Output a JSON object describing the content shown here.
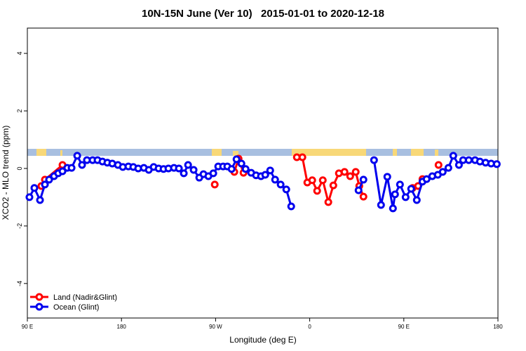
{
  "chart_data": {
    "type": "line",
    "title": "10N-15N June (Ver 10)   2015-01-01 to 2020-12-18",
    "x_label": "Longitude (deg E)",
    "y_label": "XCO2 - MLO trend (ppm)",
    "xlim": [
      90,
      540
    ],
    "ylim": [
      -5.2,
      4.88
    ],
    "xticks": [
      {
        "value": 90,
        "label": "90 E"
      },
      180,
      {
        "value": 270,
        "label": "90 W"
      },
      {
        "value": 360,
        "label": "0"
      },
      {
        "value": 450,
        "label": "90 E"
      },
      {
        "value": 540,
        "label": "180"
      }
    ],
    "yticks": [
      -4,
      -2,
      0,
      2,
      4
    ],
    "legend": "bottomleft",
    "series": [
      {
        "name": "Land (Nadir&Glint)",
        "color": "#ff0000",
        "x": [
          103.4,
          106.8,
          123.6,
          null,
          269.2,
          null,
          287.9,
          292.0,
          296.7,
          null,
          347.7,
          353.0,
          357.7,
          362.4,
          367.1,
          372.5,
          377.8,
          382.6,
          387.9,
          393.3,
          398.7,
          404.0,
          407.4,
          411.4,
          null,
          458.4,
          463.7,
          467.8,
          null,
          483.2
        ],
        "values": [
          -0.61,
          -0.39,
          0.12,
          null,
          -0.56,
          null,
          -0.12,
          0.34,
          -0.15,
          null,
          0.39,
          0.39,
          -0.49,
          -0.41,
          -0.78,
          -0.41,
          -1.17,
          -0.59,
          -0.17,
          -0.12,
          -0.27,
          -0.12,
          -0.61,
          -0.98,
          null,
          -0.68,
          -0.61,
          -0.37,
          null,
          0.12
        ]
      },
      {
        "name": "Ocean (Glint)",
        "color": "#0000ee",
        "x": [
          92.0,
          96.7,
          102.1,
          106.8,
          110.8,
          115.5,
          119.5,
          123.6,
          128.2,
          132.3,
          137.7,
          142.3,
          147.0,
          152.4,
          157.1,
          161.8,
          166.5,
          171.2,
          176.6,
          181.3,
          186.6,
          191.3,
          196.0,
          201.4,
          206.1,
          210.8,
          215.5,
          220.2,
          224.9,
          230.2,
          234.9,
          239.6,
          243.7,
          249.0,
          254.4,
          258.4,
          263.1,
          267.8,
          272.5,
          277.2,
          281.2,
          285.3,
          290.0,
          294.7,
          298.7,
          304.0,
          308.7,
          313.4,
          317.5,
          322.2,
          326.9,
          332.2,
          337.6,
          342.3,
          null,
          406.7,
          411.4,
          null,
          421.5,
          428.2,
          434.2,
          439.6,
          441.6,
          446.3,
          451.7,
          457.0,
          462.4,
          467.8,
          471.8,
          477.2,
          482.5,
          487.2,
          492.6,
          497.3,
          502.7,
          506.7,
          512.1,
          518.1,
          522.8,
          528.2,
          533.5,
          538.9
        ],
        "values": [
          -1.0,
          -0.68,
          -1.1,
          -0.56,
          -0.39,
          -0.27,
          -0.17,
          -0.1,
          0.02,
          0.02,
          0.44,
          0.12,
          0.29,
          0.29,
          0.29,
          0.24,
          0.2,
          0.17,
          0.12,
          0.05,
          0.07,
          0.05,
          0,
          0.02,
          -0.05,
          0.05,
          0,
          -0.02,
          0,
          0.02,
          0,
          -0.17,
          0.12,
          -0.05,
          -0.32,
          -0.2,
          -0.27,
          -0.17,
          0.07,
          0.07,
          0.07,
          -0.02,
          0.32,
          0.17,
          -0.02,
          -0.15,
          -0.24,
          -0.27,
          -0.22,
          -0.07,
          -0.39,
          -0.56,
          -0.73,
          -1.32,
          null,
          -0.76,
          -0.39,
          null,
          0.29,
          -1.27,
          -0.29,
          -1.39,
          -0.9,
          -0.56,
          -1.0,
          -0.71,
          -1.1,
          -0.46,
          -0.37,
          -0.27,
          -0.22,
          -0.12,
          0.02,
          0.44,
          0.12,
          0.29,
          0.29,
          0.29,
          0.24,
          0.2,
          0.17,
          0.15
        ]
      }
    ]
  }
}
